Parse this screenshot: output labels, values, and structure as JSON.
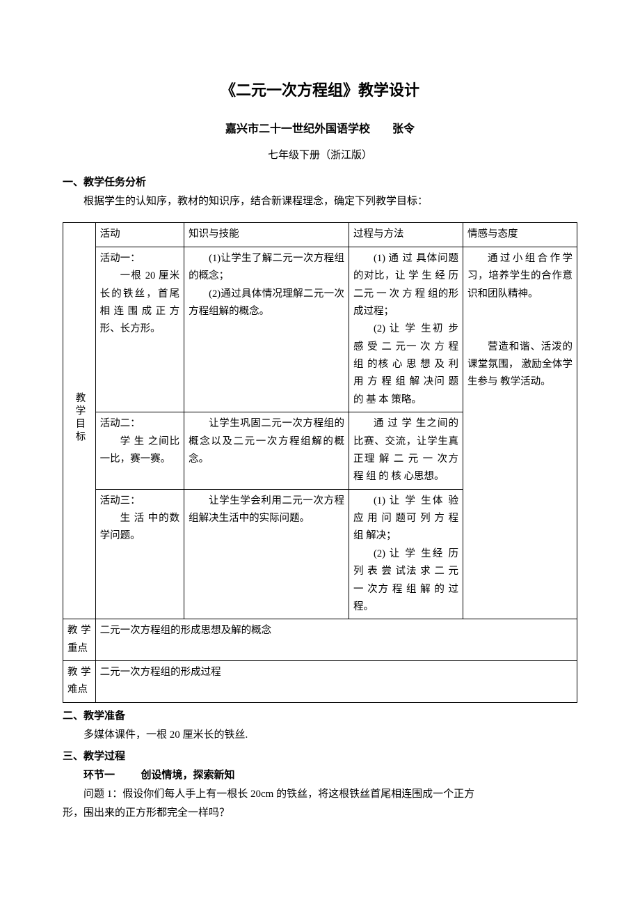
{
  "title": "《二元一次方程组》教学设计",
  "subtitle": "嘉兴市二十一世纪外国语学校　　张令",
  "edition": "七年级下册（浙江版）",
  "section1": {
    "heading": "一、教学任务分析",
    "intro": "根据学生的认知序，教材的知识序，结合新课程理念，确定下列教学目标："
  },
  "table": {
    "rowLabel": "教学目标",
    "headers": {
      "c1": "活动",
      "c2": "知识与技能",
      "c3": "过程与方法",
      "c4": "情感与态度"
    },
    "r1": {
      "c1a": "活动一：",
      "c1b": "一根 20 厘米长的铁丝，首尾相连围成正方形、长方形。",
      "c2a": "(1)让学生了解二元一次方程组的概念；",
      "c2b": "(2)通过具体情况理解二元一次方程组解的概念。",
      "c3a": "(1) 通 过 具体问题的对比，让 学 生 经 历 二元 一 次 方 程 组的形成过程；",
      "c3b": "(2) 让 学 生初 步 感 受 二 元一 次 方 程 组 的核 心 思 想 及 利用 方 程 组 解 决问 题 的 基 本 策略。",
      "c4": "通过小组合作学习，培养学生的合作意识和团队精神。"
    },
    "r2": {
      "c1a": "活动二：",
      "c1b": "学 生 之间比一比，赛一赛。",
      "c2": "让学生巩固二元一次方程组的概念以及二元一次方程组解的概念。",
      "c3": "通 过 学 生之间的比赛、交流，让学生真正理 解 二 元 一 次方 程 组 的 核 心思想。",
      "c4": "营造和谐、活泼的课堂氛围， 激励全体学生参与 教学活动。"
    },
    "r3": {
      "c1a": "活动三：",
      "c1b": "生 活 中的数学问题。",
      "c2": "让学生学会利用二元一次方程组解决生活中的实际问题。",
      "c3a": "(1) 让 学 生体 验 应 用 问 题可 列 方 程 组 解决；",
      "c3b": "(2) 让 学 生经 历 列 表 尝 试法 求 二 元 一 次方 程 组 解 的 过程。"
    },
    "focus": {
      "label": "教学重点",
      "text": "二元一次方程组的形成思想及解的概念"
    },
    "difficulty": {
      "label": "教学难点",
      "text": "二元一次方程组的形成过程"
    }
  },
  "section2": {
    "heading": "二、教学准备",
    "text": "多媒体课件，一根 20 厘米长的铁丝."
  },
  "section3": {
    "heading": "三、教学过程",
    "envLabel": "环节一",
    "envTitle": "创设情境，探索新知",
    "q1a": "问题 1：假设你们每人手上有一根长 20cm 的铁丝，将这根铁丝首尾相连围成一个正方",
    "q1b": "形，围出来的正方形都完全一样吗？"
  }
}
